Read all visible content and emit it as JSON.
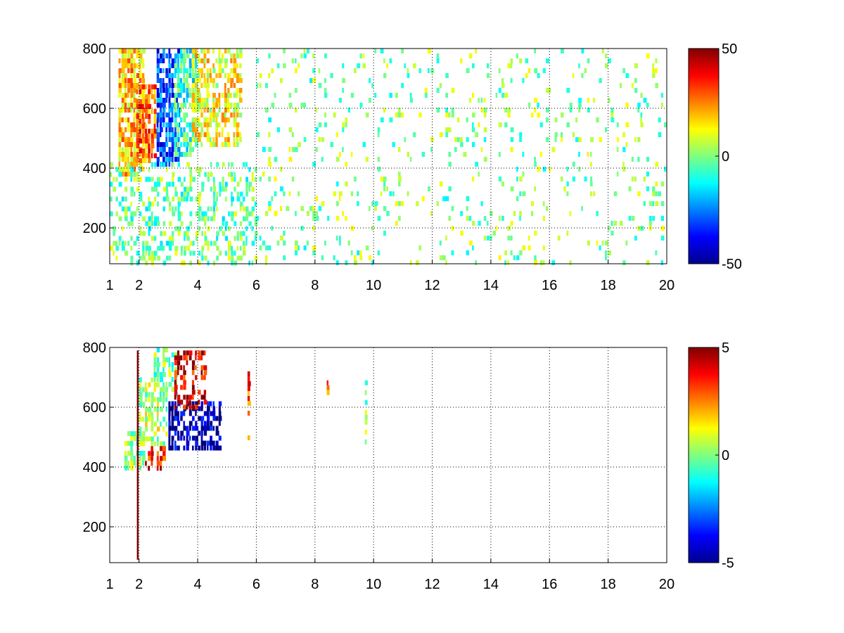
{
  "chart_data": [
    {
      "type": "heatmap",
      "title": "",
      "xlabel": "",
      "ylabel": "",
      "xlim": [
        1,
        20
      ],
      "ylim": [
        80,
        800
      ],
      "xticks": [
        1,
        2,
        4,
        6,
        8,
        10,
        12,
        14,
        16,
        18,
        20
      ],
      "yticks": [
        200,
        400,
        600,
        800
      ],
      "grid": true,
      "grid_style": "dotted",
      "colormap": "jet",
      "clim": [
        -50,
        50
      ],
      "colorbar_ticks": [
        -50,
        0,
        50
      ],
      "missing_color": "#ffffff",
      "regions": [
        {
          "x": [
            1.3,
            2.2
          ],
          "y": [
            380,
            800
          ],
          "v": 18,
          "density": 0.8
        },
        {
          "x": [
            1.9,
            2.6
          ],
          "y": [
            420,
            680
          ],
          "v": 28,
          "density": 0.75
        },
        {
          "x": [
            2.6,
            3.4
          ],
          "y": [
            420,
            800
          ],
          "v": -30,
          "density": 0.8
        },
        {
          "x": [
            3.2,
            4.0
          ],
          "y": [
            450,
            800
          ],
          "v": -8,
          "density": 0.7
        },
        {
          "x": [
            3.8,
            5.5
          ],
          "y": [
            480,
            800
          ],
          "v": 12,
          "density": 0.65
        },
        {
          "x": [
            1.0,
            6.0
          ],
          "y": [
            80,
            420
          ],
          "v": -2,
          "density": 0.35
        },
        {
          "x": [
            6.0,
            20.0
          ],
          "y": [
            80,
            800
          ],
          "v": 0,
          "density": 0.09
        }
      ]
    },
    {
      "type": "heatmap",
      "title": "",
      "xlabel": "",
      "ylabel": "",
      "xlim": [
        1,
        20
      ],
      "ylim": [
        80,
        800
      ],
      "xticks": [
        1,
        2,
        4,
        6,
        8,
        10,
        12,
        14,
        16,
        18,
        20
      ],
      "yticks": [
        200,
        400,
        600,
        800
      ],
      "grid": true,
      "grid_style": "dotted",
      "colormap": "jet",
      "clim": [
        -5,
        5
      ],
      "colorbar_ticks": [
        -5,
        0,
        5
      ],
      "missing_color": "#ffffff",
      "regions": [
        {
          "x": [
            1.5,
            2.2
          ],
          "y": [
            400,
            520
          ],
          "v": 0,
          "density": 0.7
        },
        {
          "x": [
            2.0,
            3.0
          ],
          "y": [
            480,
            700
          ],
          "v": 0.5,
          "density": 0.6
        },
        {
          "x": [
            2.5,
            3.3
          ],
          "y": [
            650,
            800
          ],
          "v": 0,
          "density": 0.6
        },
        {
          "x": [
            2.2,
            3.0
          ],
          "y": [
            390,
            470
          ],
          "v": 3.5,
          "density": 0.5
        },
        {
          "x": [
            3.0,
            4.8
          ],
          "y": [
            470,
            620
          ],
          "v": -4.5,
          "density": 0.7
        },
        {
          "x": [
            3.2,
            4.3
          ],
          "y": [
            600,
            790
          ],
          "v": 4,
          "density": 0.55
        },
        {
          "x": [
            5.7,
            5.8
          ],
          "y": [
            500,
            720
          ],
          "v": 3,
          "density": 0.6
        },
        {
          "x": [
            8.4,
            8.5
          ],
          "y": [
            650,
            690
          ],
          "v": 2.5,
          "density": 0.8
        },
        {
          "x": [
            9.7,
            9.8
          ],
          "y": [
            460,
            690
          ],
          "v": 0,
          "density": 0.5
        }
      ],
      "lines": [
        {
          "x": 1.95,
          "y": [
            90,
            790
          ],
          "v": 5
        }
      ]
    }
  ]
}
